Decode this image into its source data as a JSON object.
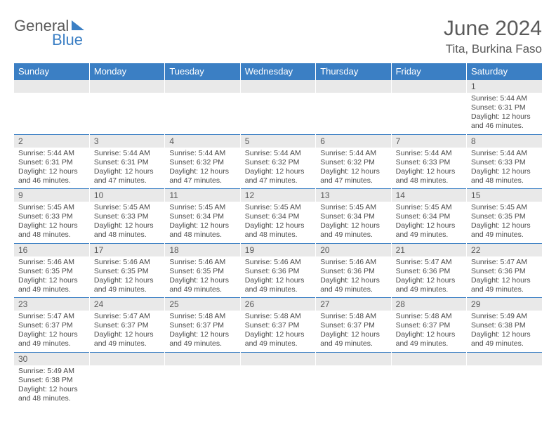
{
  "logo": {
    "part1": "General",
    "part2": "Blue"
  },
  "title": "June 2024",
  "location": "Tita, Burkina Faso",
  "colors": {
    "header_bg": "#3b7fc4",
    "daynum_bg": "#e9e9e9",
    "text_muted": "#5a5a5a",
    "text_body": "#4a4a4a",
    "page_bg": "#ffffff"
  },
  "typography": {
    "title_fontsize": 30,
    "location_fontsize": 17,
    "dayhead_fontsize": 13,
    "daynum_fontsize": 12,
    "body_fontsize": 10.5
  },
  "day_headers": [
    "Sunday",
    "Monday",
    "Tuesday",
    "Wednesday",
    "Thursday",
    "Friday",
    "Saturday"
  ],
  "weeks": [
    {
      "nums": [
        "",
        "",
        "",
        "",
        "",
        "",
        "1"
      ],
      "cells": [
        null,
        null,
        null,
        null,
        null,
        null,
        {
          "sunrise": "Sunrise: 5:44 AM",
          "sunset": "Sunset: 6:31 PM",
          "day1": "Daylight: 12 hours",
          "day2": "and 46 minutes."
        }
      ]
    },
    {
      "nums": [
        "2",
        "3",
        "4",
        "5",
        "6",
        "7",
        "8"
      ],
      "cells": [
        {
          "sunrise": "Sunrise: 5:44 AM",
          "sunset": "Sunset: 6:31 PM",
          "day1": "Daylight: 12 hours",
          "day2": "and 46 minutes."
        },
        {
          "sunrise": "Sunrise: 5:44 AM",
          "sunset": "Sunset: 6:31 PM",
          "day1": "Daylight: 12 hours",
          "day2": "and 47 minutes."
        },
        {
          "sunrise": "Sunrise: 5:44 AM",
          "sunset": "Sunset: 6:32 PM",
          "day1": "Daylight: 12 hours",
          "day2": "and 47 minutes."
        },
        {
          "sunrise": "Sunrise: 5:44 AM",
          "sunset": "Sunset: 6:32 PM",
          "day1": "Daylight: 12 hours",
          "day2": "and 47 minutes."
        },
        {
          "sunrise": "Sunrise: 5:44 AM",
          "sunset": "Sunset: 6:32 PM",
          "day1": "Daylight: 12 hours",
          "day2": "and 47 minutes."
        },
        {
          "sunrise": "Sunrise: 5:44 AM",
          "sunset": "Sunset: 6:33 PM",
          "day1": "Daylight: 12 hours",
          "day2": "and 48 minutes."
        },
        {
          "sunrise": "Sunrise: 5:44 AM",
          "sunset": "Sunset: 6:33 PM",
          "day1": "Daylight: 12 hours",
          "day2": "and 48 minutes."
        }
      ]
    },
    {
      "nums": [
        "9",
        "10",
        "11",
        "12",
        "13",
        "14",
        "15"
      ],
      "cells": [
        {
          "sunrise": "Sunrise: 5:45 AM",
          "sunset": "Sunset: 6:33 PM",
          "day1": "Daylight: 12 hours",
          "day2": "and 48 minutes."
        },
        {
          "sunrise": "Sunrise: 5:45 AM",
          "sunset": "Sunset: 6:33 PM",
          "day1": "Daylight: 12 hours",
          "day2": "and 48 minutes."
        },
        {
          "sunrise": "Sunrise: 5:45 AM",
          "sunset": "Sunset: 6:34 PM",
          "day1": "Daylight: 12 hours",
          "day2": "and 48 minutes."
        },
        {
          "sunrise": "Sunrise: 5:45 AM",
          "sunset": "Sunset: 6:34 PM",
          "day1": "Daylight: 12 hours",
          "day2": "and 48 minutes."
        },
        {
          "sunrise": "Sunrise: 5:45 AM",
          "sunset": "Sunset: 6:34 PM",
          "day1": "Daylight: 12 hours",
          "day2": "and 49 minutes."
        },
        {
          "sunrise": "Sunrise: 5:45 AM",
          "sunset": "Sunset: 6:34 PM",
          "day1": "Daylight: 12 hours",
          "day2": "and 49 minutes."
        },
        {
          "sunrise": "Sunrise: 5:45 AM",
          "sunset": "Sunset: 6:35 PM",
          "day1": "Daylight: 12 hours",
          "day2": "and 49 minutes."
        }
      ]
    },
    {
      "nums": [
        "16",
        "17",
        "18",
        "19",
        "20",
        "21",
        "22"
      ],
      "cells": [
        {
          "sunrise": "Sunrise: 5:46 AM",
          "sunset": "Sunset: 6:35 PM",
          "day1": "Daylight: 12 hours",
          "day2": "and 49 minutes."
        },
        {
          "sunrise": "Sunrise: 5:46 AM",
          "sunset": "Sunset: 6:35 PM",
          "day1": "Daylight: 12 hours",
          "day2": "and 49 minutes."
        },
        {
          "sunrise": "Sunrise: 5:46 AM",
          "sunset": "Sunset: 6:35 PM",
          "day1": "Daylight: 12 hours",
          "day2": "and 49 minutes."
        },
        {
          "sunrise": "Sunrise: 5:46 AM",
          "sunset": "Sunset: 6:36 PM",
          "day1": "Daylight: 12 hours",
          "day2": "and 49 minutes."
        },
        {
          "sunrise": "Sunrise: 5:46 AM",
          "sunset": "Sunset: 6:36 PM",
          "day1": "Daylight: 12 hours",
          "day2": "and 49 minutes."
        },
        {
          "sunrise": "Sunrise: 5:47 AM",
          "sunset": "Sunset: 6:36 PM",
          "day1": "Daylight: 12 hours",
          "day2": "and 49 minutes."
        },
        {
          "sunrise": "Sunrise: 5:47 AM",
          "sunset": "Sunset: 6:36 PM",
          "day1": "Daylight: 12 hours",
          "day2": "and 49 minutes."
        }
      ]
    },
    {
      "nums": [
        "23",
        "24",
        "25",
        "26",
        "27",
        "28",
        "29"
      ],
      "cells": [
        {
          "sunrise": "Sunrise: 5:47 AM",
          "sunset": "Sunset: 6:37 PM",
          "day1": "Daylight: 12 hours",
          "day2": "and 49 minutes."
        },
        {
          "sunrise": "Sunrise: 5:47 AM",
          "sunset": "Sunset: 6:37 PM",
          "day1": "Daylight: 12 hours",
          "day2": "and 49 minutes."
        },
        {
          "sunrise": "Sunrise: 5:48 AM",
          "sunset": "Sunset: 6:37 PM",
          "day1": "Daylight: 12 hours",
          "day2": "and 49 minutes."
        },
        {
          "sunrise": "Sunrise: 5:48 AM",
          "sunset": "Sunset: 6:37 PM",
          "day1": "Daylight: 12 hours",
          "day2": "and 49 minutes."
        },
        {
          "sunrise": "Sunrise: 5:48 AM",
          "sunset": "Sunset: 6:37 PM",
          "day1": "Daylight: 12 hours",
          "day2": "and 49 minutes."
        },
        {
          "sunrise": "Sunrise: 5:48 AM",
          "sunset": "Sunset: 6:37 PM",
          "day1": "Daylight: 12 hours",
          "day2": "and 49 minutes."
        },
        {
          "sunrise": "Sunrise: 5:49 AM",
          "sunset": "Sunset: 6:38 PM",
          "day1": "Daylight: 12 hours",
          "day2": "and 49 minutes."
        }
      ]
    },
    {
      "nums": [
        "30",
        "",
        "",
        "",
        "",
        "",
        ""
      ],
      "cells": [
        {
          "sunrise": "Sunrise: 5:49 AM",
          "sunset": "Sunset: 6:38 PM",
          "day1": "Daylight: 12 hours",
          "day2": "and 48 minutes."
        },
        null,
        null,
        null,
        null,
        null,
        null
      ]
    }
  ]
}
